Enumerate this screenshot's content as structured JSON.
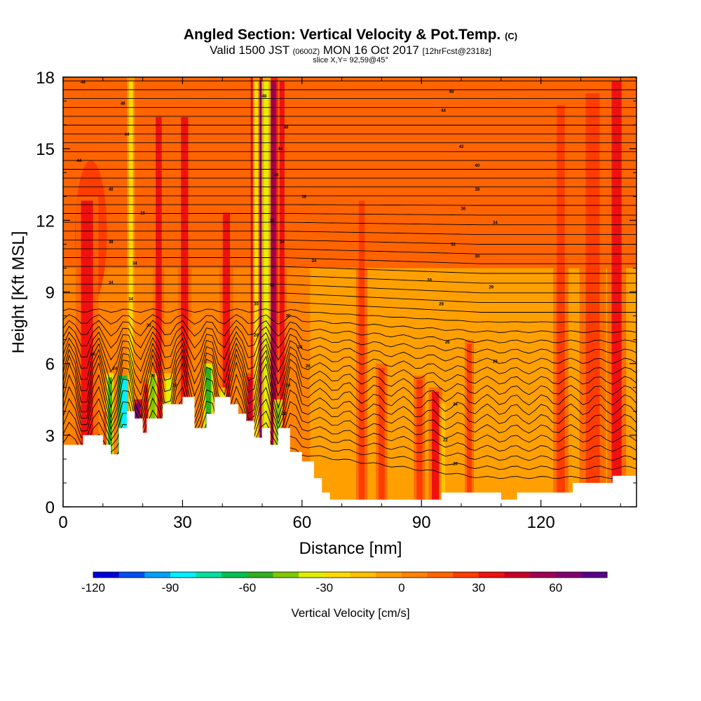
{
  "chart_data": {
    "type": "heatmap",
    "title": "Angled Section: Vertical Velocity & Pot.Temp.",
    "title_suffix": "(C)",
    "subtitle_valid": "Valid 1500 JST",
    "subtitle_utc": "(0600Z)",
    "subtitle_date": "MON 16 Oct 2017",
    "subtitle_fcst": "[12hrFcst@2318z]",
    "slice_info": "slice X,Y= 92,59@45°",
    "xlabel": "Distance [nm]",
    "ylabel": "Height [Kft MSL]",
    "xlim": [
      0,
      144
    ],
    "ylim": [
      0,
      18
    ],
    "x_ticks": [
      0,
      30,
      60,
      90,
      120
    ],
    "y_ticks": [
      0,
      3,
      6,
      9,
      12,
      15,
      18
    ],
    "colorbar": {
      "label": "Vertical Velocity [cm/s]",
      "min": -120,
      "step": 10,
      "ticks": [
        -120,
        -90,
        -60,
        -30,
        0,
        30,
        60
      ],
      "colors": [
        "#0000dc",
        "#0050f0",
        "#00a0f8",
        "#00f0ff",
        "#00e0a0",
        "#00c050",
        "#30b020",
        "#80c800",
        "#e0f000",
        "#ffdc00",
        "#ffc000",
        "#ffa000",
        "#ff8200",
        "#ff6400",
        "#ff3c00",
        "#f01010",
        "#c80028",
        "#a00050",
        "#800070",
        "#5a008c"
      ]
    },
    "terrain_kft": [
      [
        0,
        2.6
      ],
      [
        5,
        2.6
      ],
      [
        5,
        3.0
      ],
      [
        10,
        3.0
      ],
      [
        10,
        2.6
      ],
      [
        12,
        2.6
      ],
      [
        12,
        2.2
      ],
      [
        14,
        2.2
      ],
      [
        14,
        3.3
      ],
      [
        16,
        3.3
      ],
      [
        16,
        4.0
      ],
      [
        18,
        4.0
      ],
      [
        18,
        3.7
      ],
      [
        20,
        3.7
      ],
      [
        20,
        3.1
      ],
      [
        21,
        3.1
      ],
      [
        21,
        3.7
      ],
      [
        25,
        3.7
      ],
      [
        25,
        4.3
      ],
      [
        30,
        4.3
      ],
      [
        30,
        4.6
      ],
      [
        33,
        4.6
      ],
      [
        33,
        3.3
      ],
      [
        36,
        3.3
      ],
      [
        36,
        3.9
      ],
      [
        38,
        3.9
      ],
      [
        38,
        4.6
      ],
      [
        42,
        4.6
      ],
      [
        42,
        4.3
      ],
      [
        44,
        4.3
      ],
      [
        44,
        3.9
      ],
      [
        46,
        3.9
      ],
      [
        46,
        3.6
      ],
      [
        48,
        3.6
      ],
      [
        48,
        2.9
      ],
      [
        50,
        2.9
      ],
      [
        50,
        3.3
      ],
      [
        52,
        3.3
      ],
      [
        52,
        2.6
      ],
      [
        54,
        2.6
      ],
      [
        54,
        3.3
      ],
      [
        57,
        3.3
      ],
      [
        57,
        2.3
      ],
      [
        60,
        2.3
      ],
      [
        60,
        1.9
      ],
      [
        63,
        1.9
      ],
      [
        63,
        1.2
      ],
      [
        65,
        1.2
      ],
      [
        65,
        0.6
      ],
      [
        67,
        0.6
      ],
      [
        67,
        0.3
      ],
      [
        70,
        0.3
      ],
      [
        70,
        0.3
      ],
      [
        95,
        0.3
      ],
      [
        95,
        0.6
      ],
      [
        110,
        0.6
      ],
      [
        110,
        0.3
      ],
      [
        114,
        0.3
      ],
      [
        114,
        0.6
      ],
      [
        128,
        0.6
      ],
      [
        128,
        1.0
      ],
      [
        138,
        1.0
      ],
      [
        138,
        1.3
      ],
      [
        144,
        1.3
      ]
    ],
    "updraft_columns": [
      {
        "x": 11.5,
        "w": 1.4,
        "top": 4.0,
        "w_cms": 40
      },
      {
        "x": 18.5,
        "w": 1.6,
        "top": 4.5,
        "w_cms": 60
      },
      {
        "x": 21,
        "w": 1.2,
        "top": 5.3,
        "w_cms": 30
      },
      {
        "x": 24,
        "w": 1.5,
        "top": 16.5,
        "w_cms": 30
      },
      {
        "x": 30.5,
        "w": 1.8,
        "top": 16.5,
        "w_cms": 30
      },
      {
        "x": 41,
        "w": 1.8,
        "top": 12.5,
        "w_cms": 30
      },
      {
        "x": 47,
        "w": 1.2,
        "top": 5.6,
        "w_cms": 40
      },
      {
        "x": 49.5,
        "w": 2.5,
        "top": 18.0,
        "w_cms": 60
      },
      {
        "x": 52.5,
        "w": 2.0,
        "top": 18.0,
        "w_cms": 50
      },
      {
        "x": 55,
        "w": 1.2,
        "top": 18.0,
        "w_cms": 30
      },
      {
        "x": 75,
        "w": 1.5,
        "top": 13.0,
        "w_cms": 20
      },
      {
        "x": 80,
        "w": 1.5,
        "top": 6.0,
        "w_cms": 20
      },
      {
        "x": 89.5,
        "w": 1.5,
        "top": 5.5,
        "w_cms": 20
      },
      {
        "x": 93.5,
        "w": 1.8,
        "top": 5.0,
        "w_cms": 30
      },
      {
        "x": 102,
        "w": 1.2,
        "top": 7.0,
        "w_cms": 20
      },
      {
        "x": 125,
        "w": 2.0,
        "top": 17.0,
        "w_cms": 20
      },
      {
        "x": 133,
        "w": 3.5,
        "top": 17.5,
        "w_cms": 20
      },
      {
        "x": 139,
        "w": 2.5,
        "top": 18.0,
        "w_cms": 30
      },
      {
        "x": 6,
        "w": 3.0,
        "top": 13.0,
        "w_cms": 30
      }
    ],
    "downdraft_columns": [
      {
        "x": 11.8,
        "w": 1.0,
        "top": 5.6,
        "w_cms": -60
      },
      {
        "x": 15.5,
        "w": 1.8,
        "top": 5.5,
        "w_cms": -90
      },
      {
        "x": 17,
        "w": 1.0,
        "top": 18.0,
        "w_cms": -30
      },
      {
        "x": 22.5,
        "w": 1.2,
        "top": 5.6,
        "w_cms": -50
      },
      {
        "x": 26.5,
        "w": 1.2,
        "top": 5.6,
        "w_cms": -40
      },
      {
        "x": 36.5,
        "w": 1.4,
        "top": 6.0,
        "w_cms": -60
      },
      {
        "x": 40,
        "w": 1.0,
        "top": 5.0,
        "w_cms": -40
      },
      {
        "x": 51,
        "w": 1.2,
        "top": 18.0,
        "w_cms": -40
      },
      {
        "x": 54,
        "w": 1.2,
        "top": 4.5,
        "w_cms": -50
      },
      {
        "x": 48.5,
        "w": 0.9,
        "top": 18.0,
        "w_cms": -30
      },
      {
        "x": 95.5,
        "w": 0.9,
        "top": 4.5,
        "w_cms": -20
      }
    ],
    "isentrope_labels": [
      {
        "x": 5,
        "y": 17.8,
        "text": "48"
      },
      {
        "x": 15,
        "y": 16.9,
        "text": "46"
      },
      {
        "x": 16,
        "y": 15.6,
        "text": "44"
      },
      {
        "x": 4,
        "y": 14.5,
        "text": "44"
      },
      {
        "x": 12,
        "y": 13.3,
        "text": "40"
      },
      {
        "x": 20,
        "y": 12.3,
        "text": "38"
      },
      {
        "x": 12,
        "y": 11.1,
        "text": "38"
      },
      {
        "x": 18,
        "y": 10.2,
        "text": "34"
      },
      {
        "x": 12,
        "y": 9.4,
        "text": "34"
      },
      {
        "x": 17,
        "y": 8.7,
        "text": "34"
      },
      {
        "x": 21.5,
        "y": 7.6,
        "text": "30"
      },
      {
        "x": 7.5,
        "y": 6.4,
        "text": "26"
      },
      {
        "x": 13,
        "y": 5.8,
        "text": "24"
      },
      {
        "x": 22.5,
        "y": 5.5,
        "text": "24"
      },
      {
        "x": 28,
        "y": 5.1,
        "text": "22"
      },
      {
        "x": 50.5,
        "y": 17.2,
        "text": "48"
      },
      {
        "x": 56,
        "y": 15.9,
        "text": "46"
      },
      {
        "x": 54.5,
        "y": 15.0,
        "text": "44"
      },
      {
        "x": 53.5,
        "y": 13.9,
        "text": "40"
      },
      {
        "x": 60.5,
        "y": 13.0,
        "text": "38"
      },
      {
        "x": 52.5,
        "y": 12.0,
        "text": "36"
      },
      {
        "x": 55,
        "y": 11.1,
        "text": "34"
      },
      {
        "x": 63,
        "y": 10.3,
        "text": "34"
      },
      {
        "x": 52.5,
        "y": 9.3,
        "text": "32"
      },
      {
        "x": 48.5,
        "y": 8.5,
        "text": "30"
      },
      {
        "x": 56.5,
        "y": 8.0,
        "text": "30"
      },
      {
        "x": 48.5,
        "y": 7.2,
        "text": "28"
      },
      {
        "x": 59.5,
        "y": 6.7,
        "text": "28"
      },
      {
        "x": 61.5,
        "y": 5.9,
        "text": "26"
      },
      {
        "x": 56.5,
        "y": 5.1,
        "text": "24"
      },
      {
        "x": 55.5,
        "y": 3.9,
        "text": "22"
      },
      {
        "x": 97.5,
        "y": 17.4,
        "text": "48"
      },
      {
        "x": 95.5,
        "y": 16.6,
        "text": "44"
      },
      {
        "x": 100,
        "y": 15.1,
        "text": "42"
      },
      {
        "x": 104,
        "y": 14.3,
        "text": "40"
      },
      {
        "x": 104,
        "y": 13.3,
        "text": "38"
      },
      {
        "x": 100.5,
        "y": 12.5,
        "text": "36"
      },
      {
        "x": 108.5,
        "y": 11.9,
        "text": "34"
      },
      {
        "x": 98,
        "y": 11.0,
        "text": "32"
      },
      {
        "x": 104,
        "y": 10.5,
        "text": "30"
      },
      {
        "x": 92,
        "y": 9.5,
        "text": "30"
      },
      {
        "x": 107.5,
        "y": 9.2,
        "text": "29"
      },
      {
        "x": 95,
        "y": 8.5,
        "text": "28"
      },
      {
        "x": 96.5,
        "y": 6.9,
        "text": "26"
      },
      {
        "x": 108.5,
        "y": 6.1,
        "text": "26"
      },
      {
        "x": 98.5,
        "y": 4.3,
        "text": "24"
      },
      {
        "x": 96,
        "y": 2.8,
        "text": "22"
      },
      {
        "x": 98.5,
        "y": 1.8,
        "text": "20"
      }
    ]
  }
}
